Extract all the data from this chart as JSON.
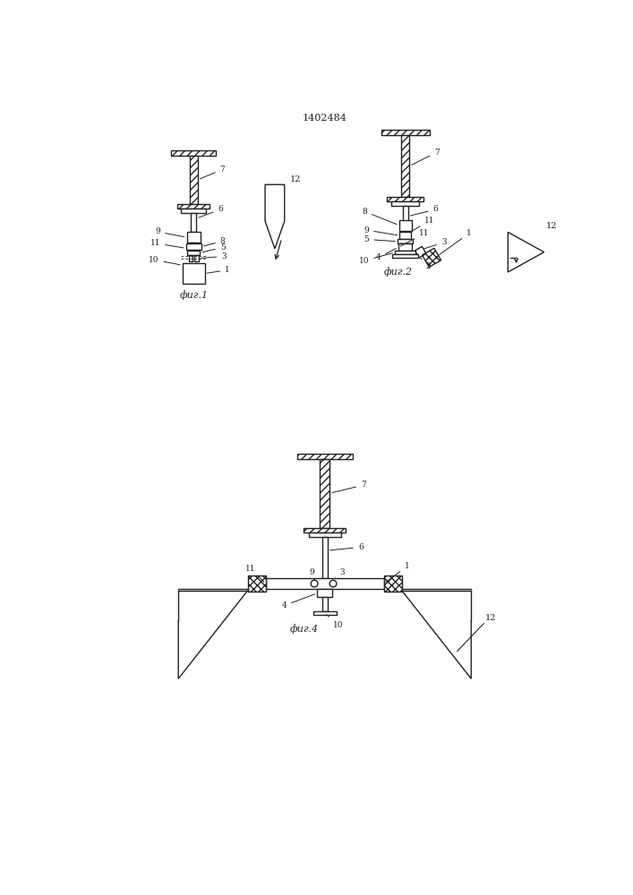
{
  "title": "1402484",
  "bg_color": "#ffffff",
  "line_color": "#222222",
  "fig1_label": "фиг.1",
  "fig2_label": "фиг.2",
  "fig4_label": "фиг.4"
}
